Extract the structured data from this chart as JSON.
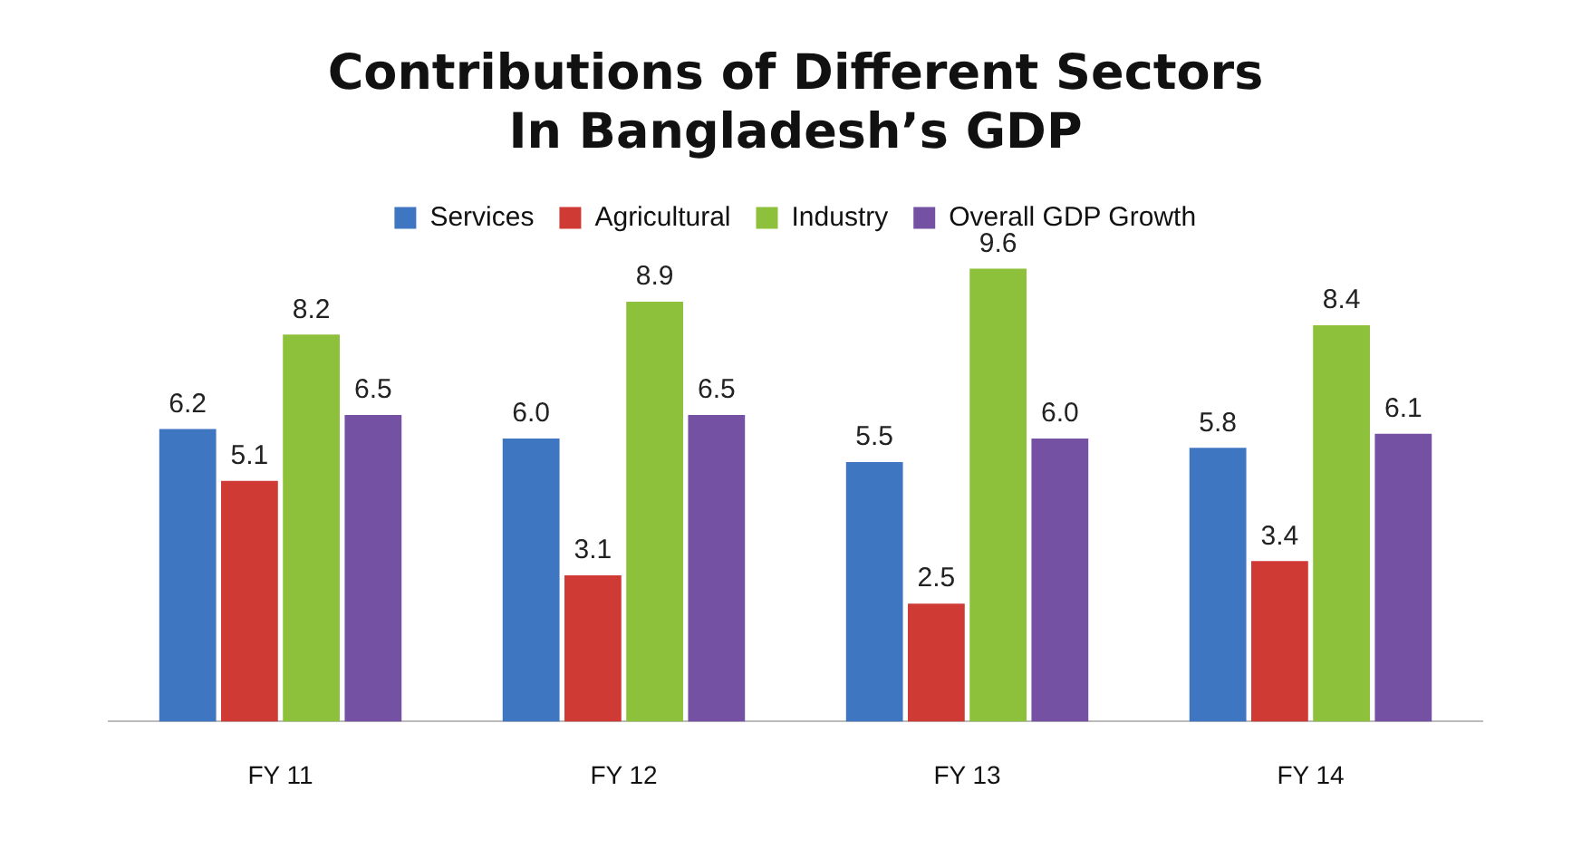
{
  "chart_data": {
    "type": "bar",
    "title": "Contributions of Different Sectors\nIn Bangladesh’s GDP",
    "categories": [
      "FY 11",
      "FY 12",
      "FY 13",
      "FY 14"
    ],
    "legend": "top",
    "grid": false,
    "series": [
      {
        "name": "Services",
        "color": "#3f76c1",
        "values": [
          6.2,
          6.0,
          5.5,
          5.8
        ],
        "value_labels": [
          "6.2",
          "6.0",
          "5.5",
          "5.8"
        ]
      },
      {
        "name": "Agricultural",
        "color": "#d03a35",
        "values": [
          5.1,
          3.1,
          2.5,
          3.4
        ],
        "value_labels": [
          "5.1",
          "3.1",
          "2.5",
          "3.4"
        ]
      },
      {
        "name": "Industry",
        "color": "#8dc13b",
        "values": [
          8.2,
          8.9,
          9.6,
          8.4
        ],
        "value_labels": [
          "8.2",
          "8.9",
          "9.6",
          "8.4"
        ]
      },
      {
        "name": "Overall GDP Growth",
        "color": "#7551a3",
        "values": [
          6.5,
          6.5,
          6.0,
          6.1
        ],
        "value_labels": [
          "6.5",
          "6.5",
          "6.0",
          "6.1"
        ]
      }
    ]
  }
}
